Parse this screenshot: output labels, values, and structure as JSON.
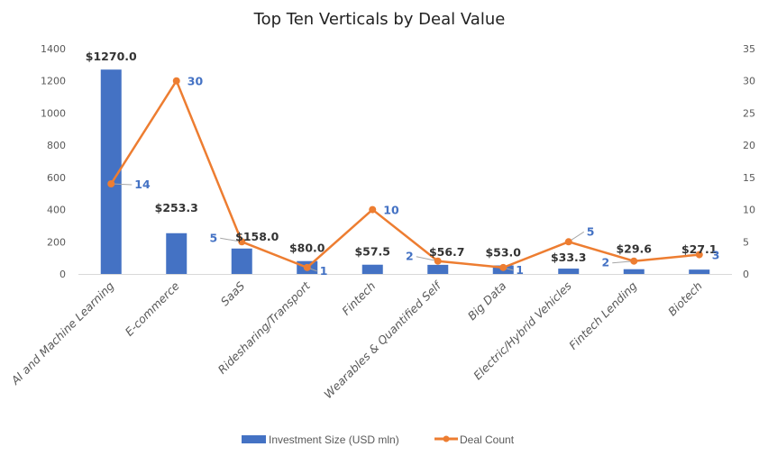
{
  "chart_data": {
    "type": "bar+line",
    "title": "Top Ten Verticals by Deal Value",
    "categories": [
      "AI and Machine Learning",
      "E-commerce",
      "SaaS",
      "Ridesharing/Transport",
      "Fintech",
      "Wearables & Quantified Self",
      "Big Data",
      "Electric/Hybrid Vehicles",
      "Fintech Lending",
      "Biotech"
    ],
    "series": [
      {
        "name": "Investment Size (USD mln)",
        "type": "bar",
        "axis": "left",
        "color": "#4472c4",
        "values": [
          1270.0,
          253.3,
          158.0,
          80.0,
          57.5,
          56.7,
          53.0,
          33.3,
          29.6,
          27.1
        ],
        "labels": [
          "$1270.0",
          "$253.3",
          "$158.0",
          "$80.0",
          "$57.5",
          "$56.7",
          "$53.0",
          "$33.3",
          "$29.6",
          "$27.1"
        ]
      },
      {
        "name": "Deal Count",
        "type": "line",
        "axis": "right",
        "color": "#ed7d31",
        "values": [
          14,
          30,
          5,
          1,
          10,
          2,
          1,
          5,
          2,
          3
        ],
        "labels": [
          "14",
          "30",
          "5",
          "1",
          "10",
          "2",
          "1",
          "5",
          "2",
          "3"
        ]
      }
    ],
    "y_left": {
      "min": 0,
      "max": 1400,
      "ticks": [
        "0",
        "200",
        "400",
        "600",
        "800",
        "1000",
        "1200",
        "1400"
      ]
    },
    "y_right": {
      "min": 0,
      "max": 35,
      "ticks": [
        "0",
        "5",
        "10",
        "15",
        "20",
        "25",
        "30",
        "35"
      ]
    },
    "xlabel": "",
    "ylabel": "",
    "grid": false,
    "legend": "bottom",
    "label_color_bar": "#333333",
    "label_color_line": "#4472c4"
  }
}
